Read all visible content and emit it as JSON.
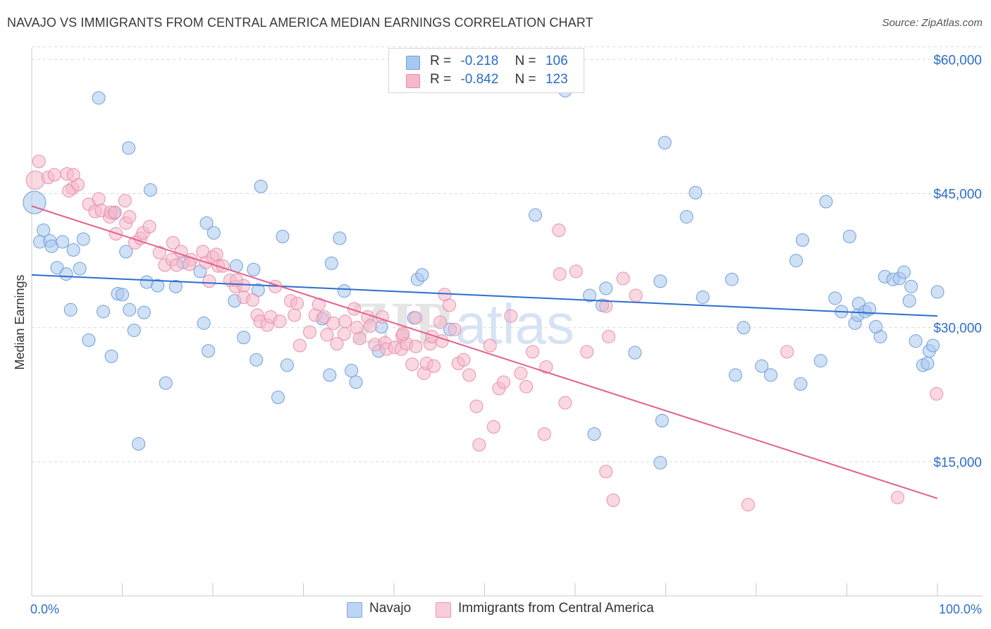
{
  "header": {
    "title": "NAVAJO VS IMMIGRANTS FROM CENTRAL AMERICA MEDIAN EARNINGS CORRELATION CHART",
    "source": "Source: ZipAtlas.com"
  },
  "watermark": {
    "zip": "ZIP",
    "atlas": "atlas"
  },
  "legend": {
    "rows": [
      {
        "r_label": "R =",
        "r_value": "-0.218",
        "n_label": "N =",
        "n_value": "106"
      },
      {
        "r_label": "R =",
        "r_value": "-0.842",
        "n_label": "N =",
        "n_value": "123"
      }
    ]
  },
  "bottom_legend": {
    "series1": "Navajo",
    "series2": "Immigrants from Central America"
  },
  "colors": {
    "navajo_fill": "#a9c8ef",
    "navajo_stroke": "#6f9fdc",
    "navajo_line": "#2c6fcc",
    "cam_fill": "#f6b8cb",
    "cam_stroke": "#e98fac",
    "cam_line": "#e0628f",
    "tick_label": "#2f6fc6",
    "grid": "#d9d9d9"
  },
  "chart_data": {
    "type": "scatter",
    "title": "NAVAJO VS IMMIGRANTS FROM CENTRAL AMERICA MEDIAN EARNINGS CORRELATION CHART",
    "ylabel": "Median Earnings",
    "xlabel": "",
    "xlim": [
      0,
      100
    ],
    "ylim": [
      0,
      62000
    ],
    "x_tick_labels": [
      "0.0%",
      "100.0%"
    ],
    "y_ticks": [
      15000,
      30000,
      45000,
      60000
    ],
    "y_tick_labels": [
      "$15,000",
      "$30,000",
      "$45,000",
      "$60,000"
    ],
    "grid": "horizontal dashed",
    "series": [
      {
        "name": "Navajo",
        "r": -0.218,
        "n": 106,
        "trend": {
          "x": [
            0,
            100
          ],
          "y": [
            35900,
            31300
          ]
        },
        "points": [
          [
            0.3,
            44000
          ],
          [
            1.3,
            40900
          ],
          [
            0.9,
            39600
          ],
          [
            2.0,
            39700
          ],
          [
            2.2,
            39100
          ],
          [
            3.4,
            39600
          ],
          [
            4.6,
            38700
          ],
          [
            5.7,
            39900
          ],
          [
            2.8,
            36700
          ],
          [
            3.8,
            36000
          ],
          [
            5.3,
            36600
          ],
          [
            7.4,
            55700
          ],
          [
            10.7,
            50100
          ],
          [
            13.1,
            45400
          ],
          [
            9.1,
            42800
          ],
          [
            4.3,
            32000
          ],
          [
            6.3,
            28600
          ],
          [
            8.8,
            26800
          ],
          [
            7.9,
            31800
          ],
          [
            9.5,
            33800
          ],
          [
            10.0,
            33700
          ],
          [
            10.8,
            32000
          ],
          [
            10.4,
            38500
          ],
          [
            12.7,
            35100
          ],
          [
            11.3,
            29700
          ],
          [
            12.4,
            31700
          ],
          [
            13.9,
            34700
          ],
          [
            15.9,
            34600
          ],
          [
            16.7,
            37300
          ],
          [
            14.8,
            23800
          ],
          [
            11.8,
            17000
          ],
          [
            19.3,
            41700
          ],
          [
            20.1,
            40600
          ],
          [
            18.6,
            36300
          ],
          [
            19.5,
            27400
          ],
          [
            19.0,
            30500
          ],
          [
            22.6,
            36900
          ],
          [
            22.4,
            33000
          ],
          [
            23.4,
            28900
          ],
          [
            24.5,
            36500
          ],
          [
            25.0,
            34200
          ],
          [
            25.3,
            45800
          ],
          [
            24.8,
            26400
          ],
          [
            27.7,
            40200
          ],
          [
            28.2,
            25800
          ],
          [
            27.2,
            22200
          ],
          [
            32.1,
            31000
          ],
          [
            34.0,
            40000
          ],
          [
            34.5,
            34100
          ],
          [
            33.1,
            37200
          ],
          [
            32.9,
            24700
          ],
          [
            35.3,
            25200
          ],
          [
            35.8,
            23900
          ],
          [
            38.6,
            30100
          ],
          [
            38.3,
            27400
          ],
          [
            42.6,
            35400
          ],
          [
            43.1,
            35900
          ],
          [
            42.2,
            31100
          ],
          [
            46.2,
            29800
          ],
          [
            55.6,
            42600
          ],
          [
            58.9,
            56500
          ],
          [
            61.6,
            33600
          ],
          [
            63.4,
            34400
          ],
          [
            63.0,
            32500
          ],
          [
            62.1,
            18100
          ],
          [
            66.6,
            27200
          ],
          [
            69.4,
            35200
          ],
          [
            69.6,
            19600
          ],
          [
            69.9,
            50700
          ],
          [
            69.4,
            14900
          ],
          [
            72.3,
            42400
          ],
          [
            74.1,
            33400
          ],
          [
            73.3,
            45100
          ],
          [
            77.3,
            35400
          ],
          [
            78.6,
            30000
          ],
          [
            77.7,
            24700
          ],
          [
            80.6,
            25700
          ],
          [
            81.6,
            24700
          ],
          [
            84.4,
            37500
          ],
          [
            84.9,
            23700
          ],
          [
            85.1,
            39800
          ],
          [
            87.7,
            44100
          ],
          [
            87.1,
            26300
          ],
          [
            88.7,
            33300
          ],
          [
            89.4,
            31800
          ],
          [
            90.3,
            40200
          ],
          [
            90.9,
            30500
          ],
          [
            91.2,
            31400
          ],
          [
            91.3,
            32700
          ],
          [
            92.0,
            31800
          ],
          [
            92.5,
            32100
          ],
          [
            93.7,
            29000
          ],
          [
            93.2,
            30100
          ],
          [
            94.2,
            35700
          ],
          [
            95.1,
            35400
          ],
          [
            95.8,
            35500
          ],
          [
            96.3,
            36200
          ],
          [
            96.9,
            33000
          ],
          [
            97.1,
            34600
          ],
          [
            97.6,
            28500
          ],
          [
            98.4,
            25800
          ],
          [
            98.9,
            26000
          ],
          [
            99.1,
            27400
          ],
          [
            99.5,
            28000
          ],
          [
            100.0,
            34000
          ]
        ]
      },
      {
        "name": "Immigrants from Central America",
        "r": -0.842,
        "n": 123,
        "trend": {
          "x": [
            0,
            100
          ],
          "y": [
            43600,
            10900
          ]
        },
        "points": [
          [
            0.4,
            46500
          ],
          [
            0.8,
            48600
          ],
          [
            1.8,
            46800
          ],
          [
            2.5,
            47100
          ],
          [
            3.9,
            47200
          ],
          [
            4.5,
            45600
          ],
          [
            4.1,
            45300
          ],
          [
            5.1,
            46000
          ],
          [
            4.6,
            47100
          ],
          [
            6.3,
            43800
          ],
          [
            7.4,
            44400
          ],
          [
            7.0,
            43000
          ],
          [
            7.7,
            43100
          ],
          [
            8.6,
            42400
          ],
          [
            8.7,
            42900
          ],
          [
            9.2,
            42900
          ],
          [
            10.3,
            44200
          ],
          [
            9.3,
            40500
          ],
          [
            10.4,
            41700
          ],
          [
            10.8,
            42400
          ],
          [
            11.4,
            39500
          ],
          [
            12.0,
            40000
          ],
          [
            12.3,
            40600
          ],
          [
            13.0,
            41300
          ],
          [
            14.1,
            38400
          ],
          [
            14.7,
            37000
          ],
          [
            15.6,
            39500
          ],
          [
            15.5,
            37600
          ],
          [
            16.0,
            37000
          ],
          [
            16.5,
            38500
          ],
          [
            17.6,
            37600
          ],
          [
            17.4,
            37100
          ],
          [
            19.2,
            37300
          ],
          [
            18.9,
            38500
          ],
          [
            19.6,
            35200
          ],
          [
            20.0,
            37900
          ],
          [
            20.4,
            38200
          ],
          [
            20.6,
            36900
          ],
          [
            21.1,
            36900
          ],
          [
            21.9,
            35300
          ],
          [
            22.5,
            34600
          ],
          [
            23.4,
            34700
          ],
          [
            22.6,
            35300
          ],
          [
            23.4,
            33400
          ],
          [
            24.4,
            33100
          ],
          [
            24.9,
            31400
          ],
          [
            25.2,
            30700
          ],
          [
            26.0,
            30300
          ],
          [
            26.4,
            31200
          ],
          [
            26.9,
            34600
          ],
          [
            27.4,
            30700
          ],
          [
            28.6,
            33000
          ],
          [
            29.0,
            31400
          ],
          [
            29.3,
            32700
          ],
          [
            29.6,
            28000
          ],
          [
            30.7,
            29500
          ],
          [
            31.3,
            31400
          ],
          [
            31.7,
            32600
          ],
          [
            32.3,
            31200
          ],
          [
            32.6,
            29200
          ],
          [
            33.3,
            30500
          ],
          [
            33.7,
            28200
          ],
          [
            34.6,
            30700
          ],
          [
            34.5,
            29300
          ],
          [
            35.6,
            32100
          ],
          [
            35.9,
            30000
          ],
          [
            36.2,
            28800
          ],
          [
            37.1,
            31200
          ],
          [
            37.4,
            30200
          ],
          [
            37.9,
            28100
          ],
          [
            38.7,
            31200
          ],
          [
            39.0,
            28300
          ],
          [
            39.2,
            27600
          ],
          [
            40.1,
            27800
          ],
          [
            40.9,
            29100
          ],
          [
            40.8,
            27600
          ],
          [
            41.4,
            28200
          ],
          [
            41.0,
            29300
          ],
          [
            42.0,
            25900
          ],
          [
            42.4,
            27900
          ],
          [
            42.4,
            31100
          ],
          [
            43.3,
            24900
          ],
          [
            43.6,
            26000
          ],
          [
            44.0,
            28200
          ],
          [
            44.2,
            29000
          ],
          [
            44.4,
            25700
          ],
          [
            45.1,
            30600
          ],
          [
            45.3,
            28500
          ],
          [
            45.6,
            33700
          ],
          [
            46.1,
            32500
          ],
          [
            46.7,
            29800
          ],
          [
            47.1,
            26000
          ],
          [
            47.7,
            26400
          ],
          [
            48.3,
            24700
          ],
          [
            49.1,
            21200
          ],
          [
            49.4,
            16900
          ],
          [
            50.6,
            28000
          ],
          [
            51.0,
            18900
          ],
          [
            51.6,
            23200
          ],
          [
            52.1,
            23900
          ],
          [
            52.9,
            31300
          ],
          [
            54.0,
            24900
          ],
          [
            54.6,
            23400
          ],
          [
            55.3,
            27300
          ],
          [
            56.8,
            25600
          ],
          [
            56.6,
            18100
          ],
          [
            58.2,
            40900
          ],
          [
            58.3,
            36000
          ],
          [
            58.9,
            21600
          ],
          [
            60.1,
            36300
          ],
          [
            61.3,
            27300
          ],
          [
            63.4,
            13900
          ],
          [
            63.7,
            29000
          ],
          [
            63.4,
            32400
          ],
          [
            64.2,
            10700
          ],
          [
            65.3,
            35500
          ],
          [
            66.7,
            33600
          ],
          [
            79.1,
            10200
          ],
          [
            83.4,
            27300
          ],
          [
            95.6,
            11000
          ],
          [
            99.9,
            22600
          ]
        ]
      }
    ]
  }
}
